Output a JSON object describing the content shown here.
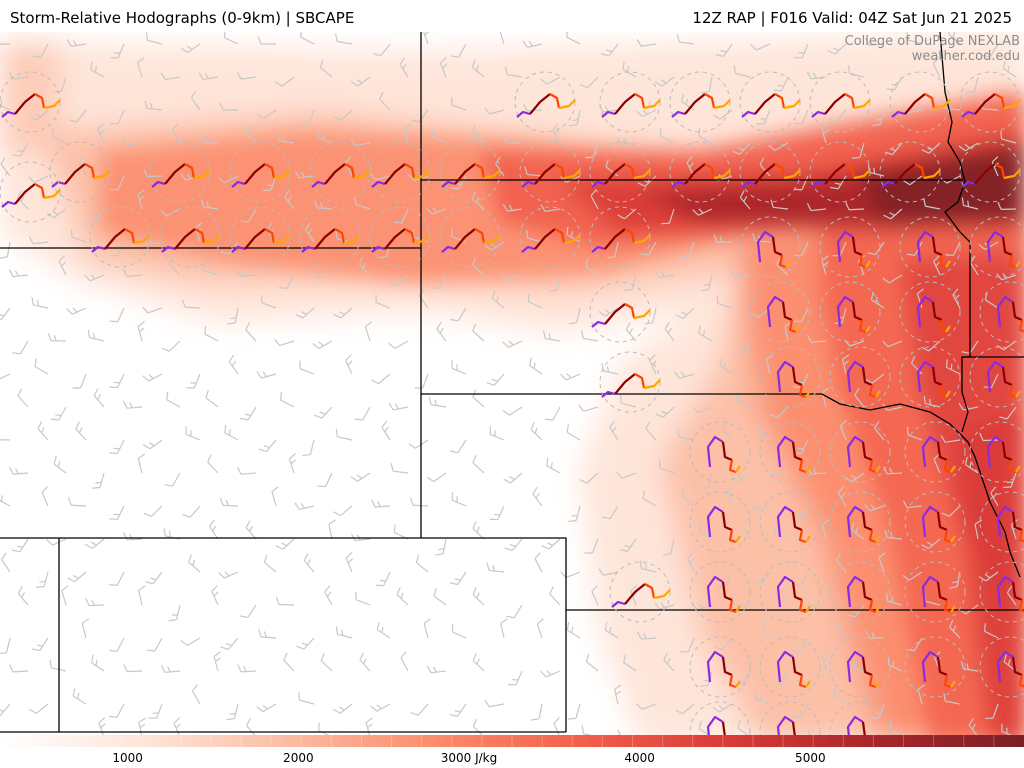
{
  "header": {
    "title_left": "Storm-Relative Hodographs (0-9km) | SBCAPE",
    "title_right": "12Z RAP | F016 Valid: 04Z Sat Jun 21 2025"
  },
  "credit": {
    "line1": "College of DuPage NEXLAB",
    "line2": "weather.cod.edu"
  },
  "colors": {
    "cape_scale": [
      "#fee5d9",
      "#fcbba1",
      "#fb8a6a",
      "#f25e4b",
      "#d93a36",
      "#a6262b",
      "#7a1f24"
    ],
    "hodograph_0_3km": "#8b0000",
    "hodograph_3_6km": "#ff4500",
    "hodograph_6_9km": "#ffa500",
    "hodograph_low": "#8a2be2",
    "barbs": "#c8c8c8",
    "borders": "#000000"
  },
  "colorbar": {
    "ticks": [
      "1000",
      "2000",
      "3000 J/kg",
      "4000",
      "5000"
    ],
    "min": 0,
    "max": 6000,
    "units": "J/kg"
  },
  "map_layer": {
    "field": "SBCAPE",
    "overlay": "storm-relative hodographs 0-9km",
    "barb_icon": "wind-barb-icon",
    "hodograph_icon": "hodograph-icon"
  }
}
